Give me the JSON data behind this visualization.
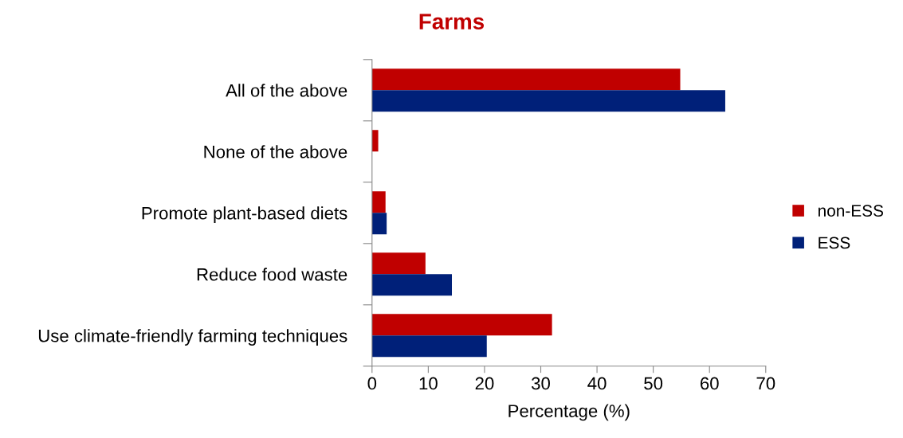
{
  "chart_data": {
    "type": "bar",
    "orientation": "horizontal",
    "title": "Farms",
    "xlabel": "Percentage (%)",
    "categories": [
      "All of the above",
      "None of the above",
      "Promote plant-based diets",
      "Reduce food waste",
      "Use climate-friendly farming techniques"
    ],
    "series": [
      {
        "name": "non-ESS",
        "color": "#c00000",
        "values": [
          54.8,
          1.1,
          2.4,
          9.5,
          32.0
        ]
      },
      {
        "name": "ESS",
        "color": "#002079",
        "values": [
          62.8,
          0,
          2.6,
          14.2,
          20.4
        ]
      }
    ],
    "xlim": [
      0,
      70
    ],
    "xticks": [
      0,
      10,
      20,
      30,
      40,
      50,
      60,
      70
    ],
    "grid": false,
    "legend": "right"
  }
}
